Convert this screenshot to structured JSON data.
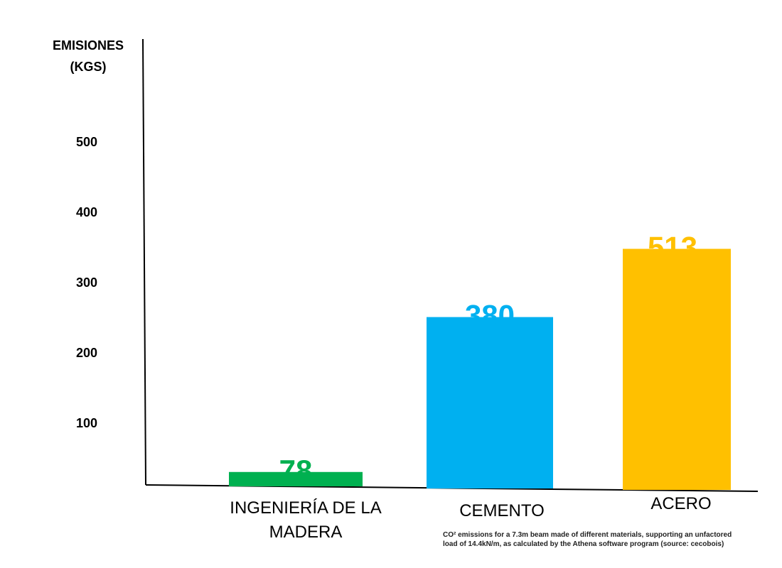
{
  "chart_data": {
    "type": "bar",
    "ylabel_lines": [
      "EMISIONES",
      "(KGS)"
    ],
    "categories": [
      {
        "lines": [
          "INGENIERÍA DE LA",
          "MADERA"
        ]
      },
      {
        "lines": [
          "CEMENTO"
        ]
      },
      {
        "lines": [
          "ACERO"
        ]
      }
    ],
    "values": [
      78,
      380,
      513
    ],
    "value_labels": [
      "78",
      "380",
      "513"
    ],
    "colors": [
      "#00b050",
      "#00b0f0",
      "#ffc000"
    ],
    "y_ticks": [
      100,
      200,
      300,
      400,
      500
    ],
    "y_tick_labels": [
      "100",
      "200",
      "300",
      "400",
      "500"
    ],
    "ylim": [
      0,
      600
    ],
    "grid": false,
    "footnote_lines": [
      "CO² emissions for a 7.3m beam made of different materials, supporting an unfactored",
      "load of 14.4kN/m, as calculated by the Athena software program (source: cecobois)"
    ]
  }
}
